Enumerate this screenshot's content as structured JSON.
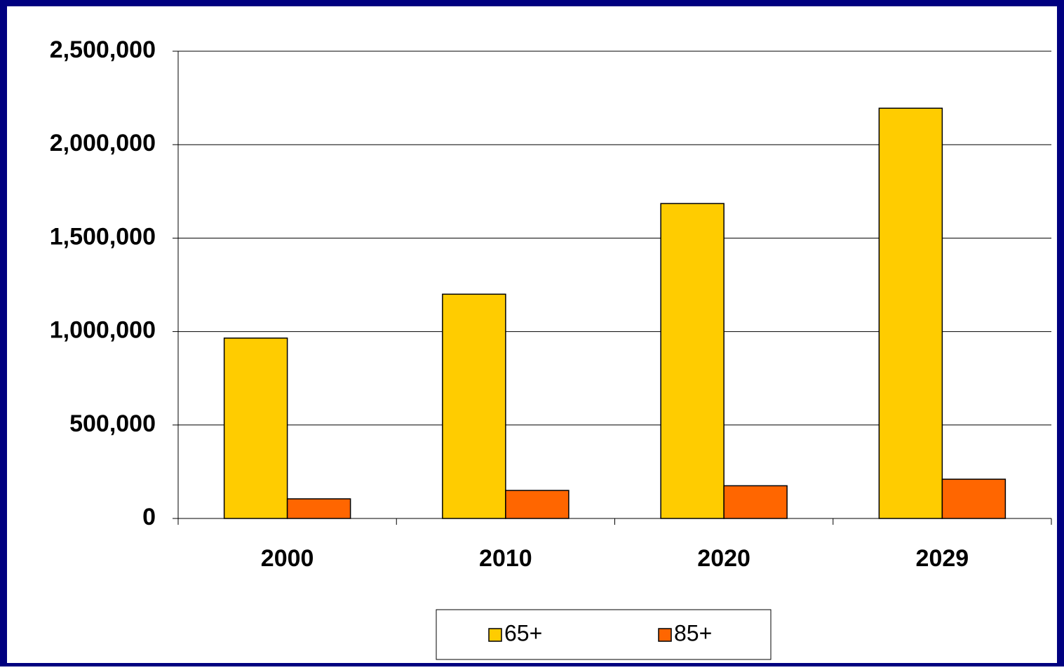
{
  "chart_data": {
    "type": "bar",
    "categories": [
      "2000",
      "2010",
      "2020",
      "2029"
    ],
    "series": [
      {
        "name": "65+",
        "color": "#FFCC00",
        "values": [
          965000,
          1200000,
          1685000,
          2195000
        ]
      },
      {
        "name": "85+",
        "color": "#FF6600",
        "values": [
          105000,
          150000,
          175000,
          210000
        ]
      }
    ],
    "ylim": [
      0,
      2500000
    ],
    "yticks": [
      0,
      {
        "value": 500000,
        "label": "500,000"
      },
      {
        "value": 1000000,
        "label": "1,000,000"
      },
      {
        "value": 1500000,
        "label": "1,500,000"
      },
      {
        "value": 2000000,
        "label": "2,000,000"
      },
      {
        "value": 2500000,
        "label": "2,500,000"
      }
    ],
    "grid": true,
    "legend": "bottom"
  }
}
